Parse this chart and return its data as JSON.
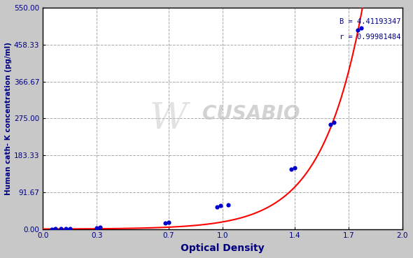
{
  "title": "",
  "xlabel": "Optical Density",
  "ylabel": "Human cath- K concentration (pg/ml)",
  "annotation_line1": "B = 4.41193347",
  "annotation_line2": "r = 0.99981484",
  "bg_color": "#c8c8c8",
  "plot_bg_color": "#ffffff",
  "curve_color": "#ff0000",
  "dot_color": "#0000cc",
  "grid_color": "#aaaaaa",
  "xlim": [
    0.0,
    2.0
  ],
  "ylim": [
    0.0,
    550.0
  ],
  "xticks": [
    0.0,
    0.3,
    0.7,
    1.0,
    1.4,
    1.7,
    2.0
  ],
  "xtick_labels": [
    "0.0",
    "0.3",
    "0.7",
    "1.0",
    "1.4",
    "1.7",
    "2.0"
  ],
  "ytick_values": [
    0.0,
    91.67,
    183.33,
    275.0,
    366.67,
    458.33,
    550.0
  ],
  "ytick_labels": [
    "0.00",
    "91.67",
    "183.33",
    "275.00",
    "366.67",
    "458.33",
    "550.00"
  ],
  "data_points": [
    [
      0.05,
      0.2
    ],
    [
      0.07,
      0.3
    ],
    [
      0.1,
      0.5
    ],
    [
      0.13,
      0.8
    ],
    [
      0.15,
      1.0
    ],
    [
      0.3,
      3.5
    ],
    [
      0.32,
      4.0
    ],
    [
      0.68,
      15.0
    ],
    [
      0.7,
      16.0
    ],
    [
      0.97,
      55.0
    ],
    [
      0.99,
      58.0
    ],
    [
      1.03,
      60.0
    ],
    [
      1.38,
      148.0
    ],
    [
      1.4,
      152.0
    ],
    [
      1.6,
      260.0
    ],
    [
      1.62,
      265.0
    ],
    [
      1.75,
      495.0
    ],
    [
      1.77,
      500.0
    ]
  ],
  "B": 4.41193347,
  "a": 0.018,
  "watermark_text": "CUSABIO",
  "figsize": [
    5.9,
    3.69
  ],
  "dpi": 100
}
